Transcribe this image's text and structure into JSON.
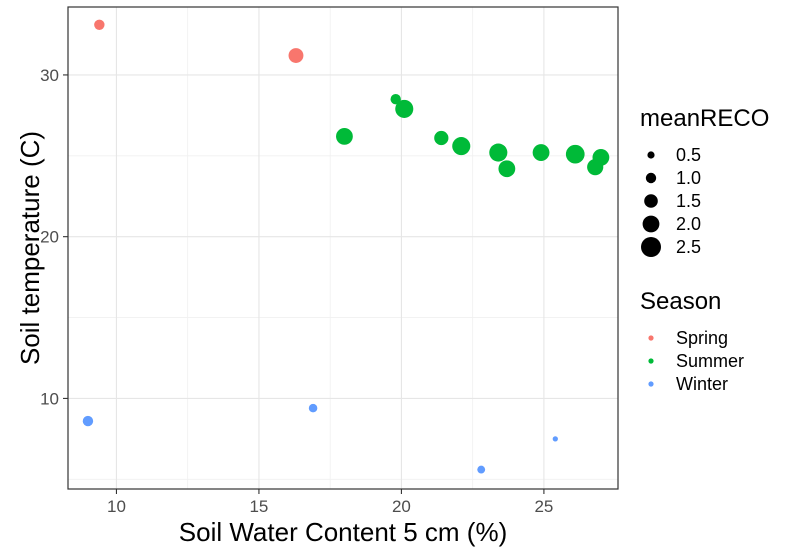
{
  "chart_data": {
    "type": "scatter",
    "xlabel": "Soil Water Content 5 cm (%)",
    "ylabel": "Soil temperature (C)",
    "xlim": [
      8.3,
      27.6
    ],
    "ylim": [
      4.4,
      34.2
    ],
    "x_ticks": [
      10,
      15,
      20,
      25
    ],
    "x_tick_labels": [
      "10",
      "15",
      "20",
      "25"
    ],
    "x_minor_ticks": [
      12.5,
      17.5,
      22.5
    ],
    "y_ticks": [
      10,
      20,
      30
    ],
    "y_tick_labels": [
      "10",
      "20",
      "30"
    ],
    "y_minor_ticks": [
      5,
      15,
      25
    ],
    "grid": true,
    "size_legend": {
      "title": "meanRECO",
      "labels": [
        "0.5",
        "1.0",
        "1.5",
        "2.0",
        "2.5"
      ],
      "values": [
        0.5,
        1.0,
        1.5,
        2.0,
        2.5
      ]
    },
    "color_legend": {
      "title": "Season",
      "labels": [
        "Spring",
        "Summer",
        "Winter"
      ]
    },
    "colors": {
      "Spring": "#F8766D",
      "Summer": "#00BA38",
      "Winter": "#619CFF"
    },
    "points": [
      {
        "season": "Spring",
        "x": 9.4,
        "y": 33.1,
        "size": 1.0
      },
      {
        "season": "Spring",
        "x": 16.3,
        "y": 31.2,
        "size": 1.7
      },
      {
        "season": "Summer",
        "x": 18.0,
        "y": 26.2,
        "size": 2.0
      },
      {
        "season": "Summer",
        "x": 19.8,
        "y": 28.5,
        "size": 1.0
      },
      {
        "season": "Summer",
        "x": 20.1,
        "y": 27.9,
        "size": 2.2
      },
      {
        "season": "Summer",
        "x": 21.4,
        "y": 26.1,
        "size": 1.6
      },
      {
        "season": "Summer",
        "x": 22.1,
        "y": 25.6,
        "size": 2.2
      },
      {
        "season": "Summer",
        "x": 23.4,
        "y": 25.2,
        "size": 2.2
      },
      {
        "season": "Summer",
        "x": 23.7,
        "y": 24.2,
        "size": 2.0
      },
      {
        "season": "Summer",
        "x": 24.9,
        "y": 25.2,
        "size": 2.0
      },
      {
        "season": "Summer",
        "x": 26.1,
        "y": 25.1,
        "size": 2.3
      },
      {
        "season": "Summer",
        "x": 26.8,
        "y": 24.3,
        "size": 1.9
      },
      {
        "season": "Summer",
        "x": 27.0,
        "y": 24.9,
        "size": 2.0
      },
      {
        "season": "Winter",
        "x": 9.0,
        "y": 8.6,
        "size": 1.0
      },
      {
        "season": "Winter",
        "x": 16.9,
        "y": 9.4,
        "size": 0.7
      },
      {
        "season": "Winter",
        "x": 22.8,
        "y": 5.6,
        "size": 0.6
      },
      {
        "season": "Winter",
        "x": 25.4,
        "y": 7.5,
        "size": 0.2
      }
    ]
  }
}
